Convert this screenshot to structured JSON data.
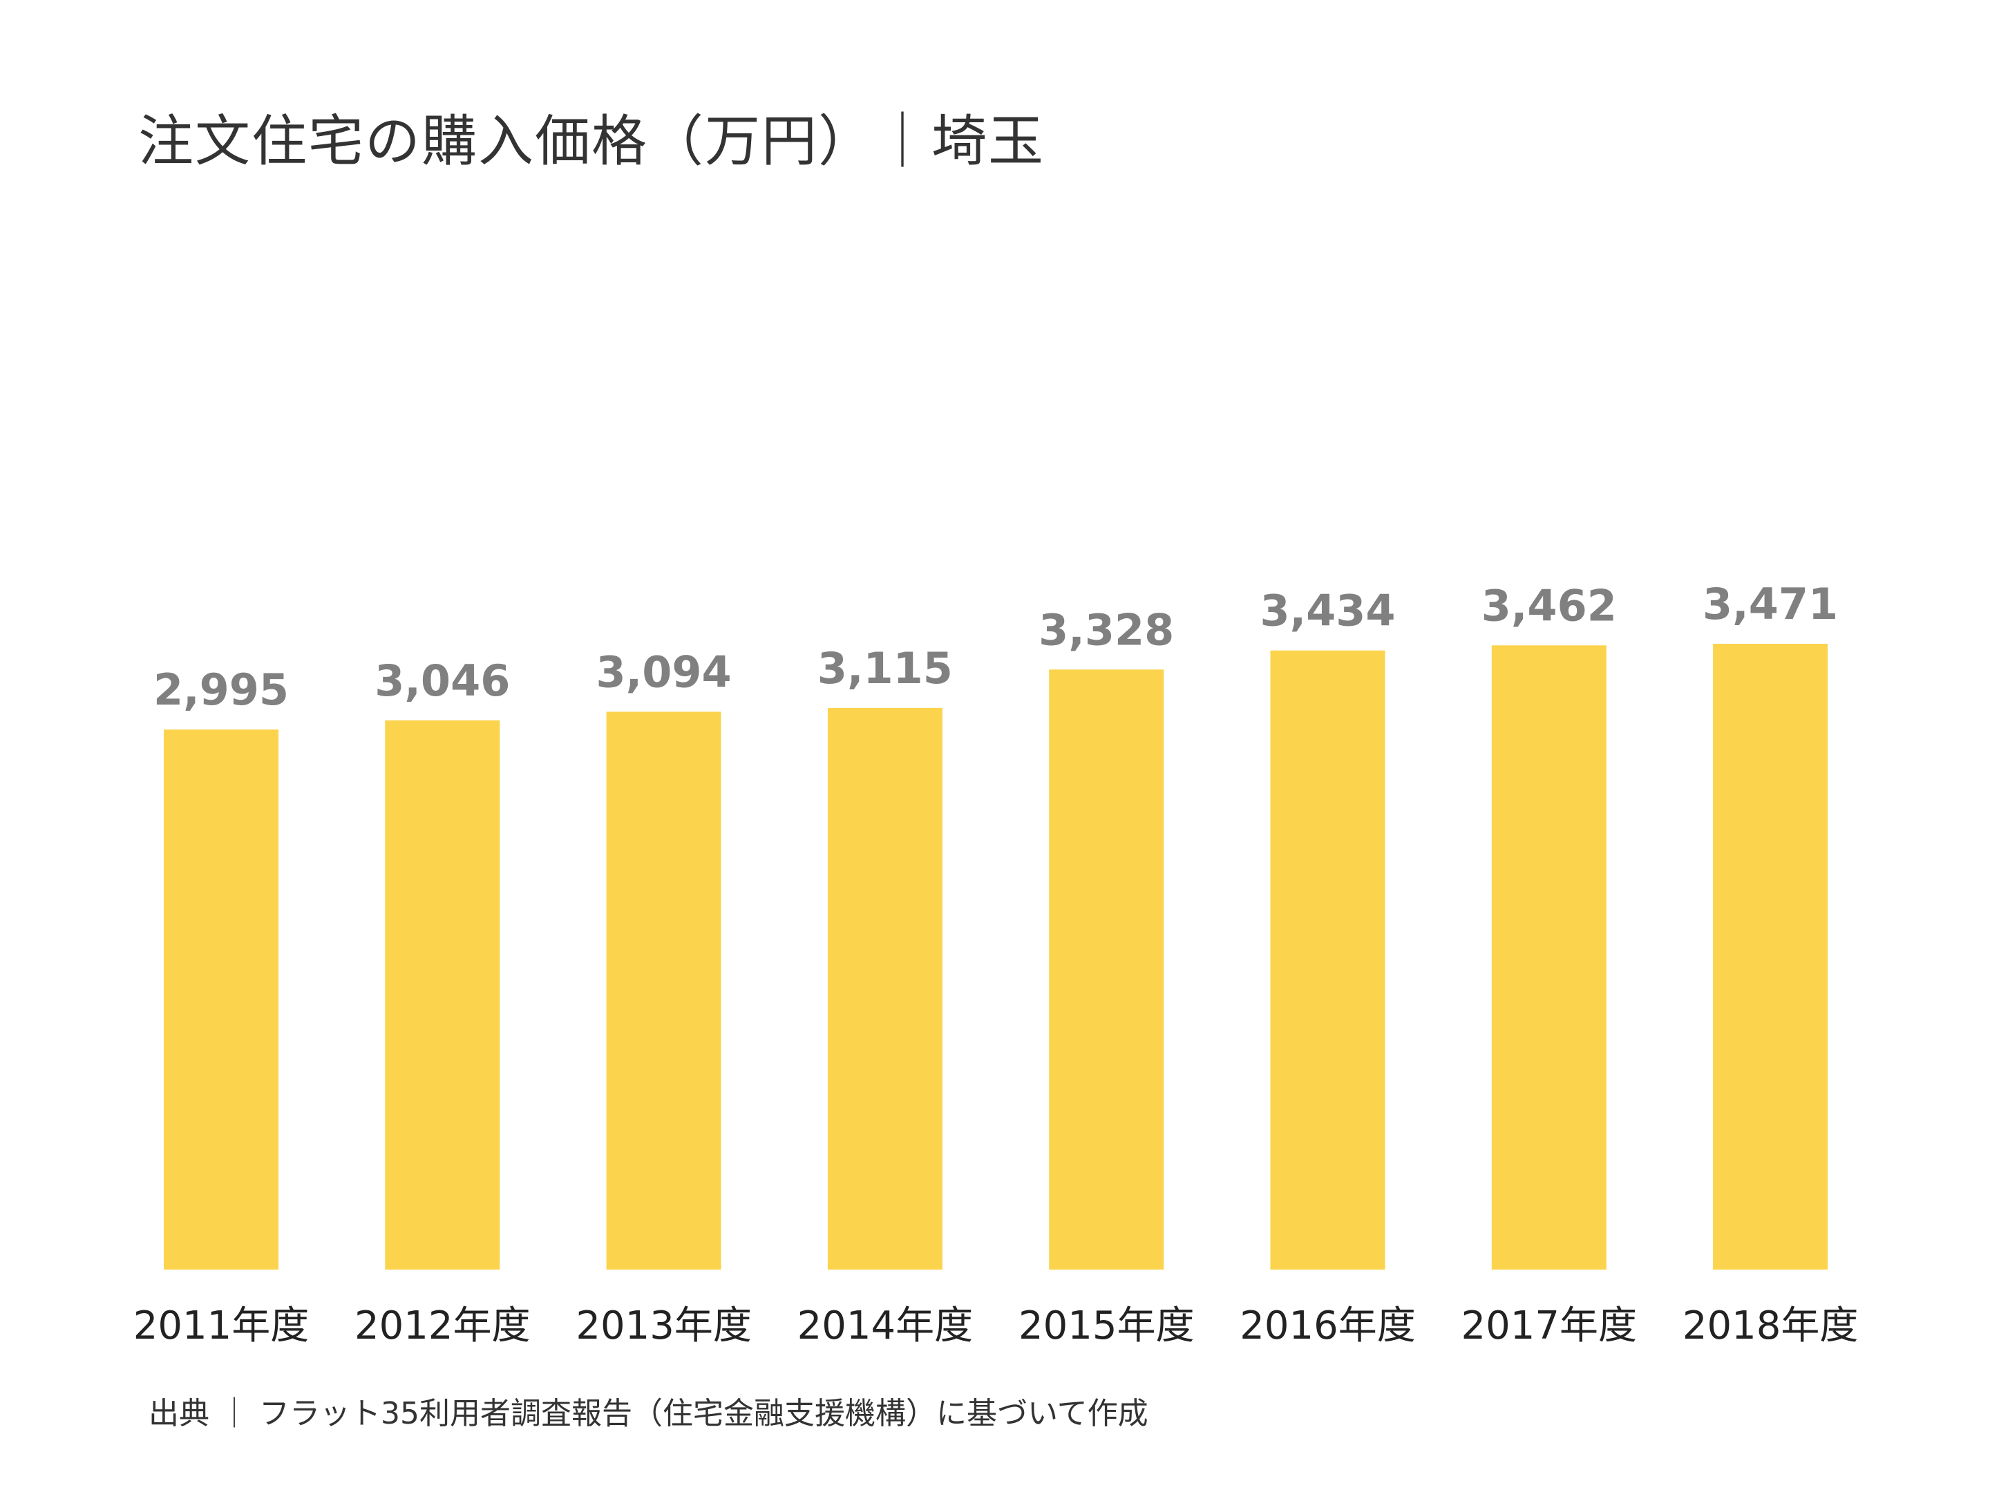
{
  "chart_data": {
    "type": "bar",
    "title": "注文住宅の購入価格（万円）｜埼玉",
    "categories": [
      "2011年度",
      "2012年度",
      "2013年度",
      "2014年度",
      "2015年度",
      "2016年度",
      "2017年度",
      "2018年度"
    ],
    "series": [
      {
        "values": [
          2995,
          3046,
          3094,
          3115,
          3328,
          3434,
          3462,
          3471
        ],
        "value_labels": [
          "2,995",
          "3,046",
          "3,094",
          "3,115",
          "3,328",
          "3,434",
          "3,462",
          "3,471"
        ],
        "color": "#FCD34D"
      }
    ],
    "xlabel": "",
    "ylabel": "",
    "ylim": [
      0,
      3471
    ],
    "grid": false,
    "legend": "none",
    "source": "出典 ｜ フラット35利用者調査報告（住宅金融支援機構）に基づいて作成"
  }
}
